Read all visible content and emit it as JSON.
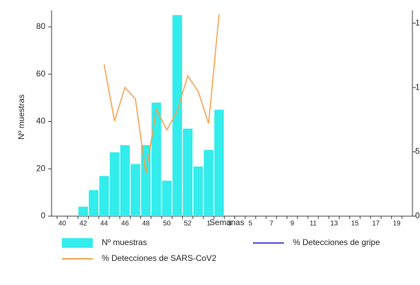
{
  "chart_data": {
    "type": "bar",
    "x_label": "Semanas",
    "y_label": "Nº muestras",
    "categories": [
      "40",
      null,
      "42",
      null,
      "44",
      null,
      "46",
      null,
      "48",
      null,
      "50",
      null,
      "52",
      null,
      "1",
      null,
      "3",
      null,
      "5",
      null,
      "7",
      null,
      "9",
      null,
      "11",
      null,
      "13",
      null,
      "15",
      null,
      "17",
      null,
      "19",
      null
    ],
    "series": [
      {
        "name": "Nº muestras",
        "type": "bar",
        "color": "#33ecec",
        "values": [
          null,
          null,
          4,
          11,
          17,
          27,
          30,
          22,
          30,
          48,
          15,
          85,
          37,
          21,
          28,
          45,
          null,
          null,
          null,
          null,
          null,
          null,
          null,
          null,
          null,
          null,
          null,
          null,
          null,
          null,
          null,
          null,
          null,
          null
        ]
      },
      {
        "name": "% Detecciones de gripe",
        "type": "line",
        "axis": "y2",
        "color": "#4444dd",
        "values": [
          null,
          null,
          null,
          null,
          null,
          null,
          null,
          null,
          null,
          null,
          null,
          null,
          null,
          null,
          null,
          null,
          null,
          null,
          null,
          null,
          null,
          null,
          null,
          null,
          null,
          null,
          null,
          null,
          null,
          null,
          null,
          null,
          null,
          null
        ]
      },
      {
        "name": "% Detecciones de SARS-CoV2",
        "type": "line",
        "axis": "y2",
        "color": "#f5a04a",
        "values": [
          null,
          null,
          null,
          null,
          11.8,
          7.4,
          10,
          9.1,
          3.3,
          8.3,
          6.7,
          8.2,
          10.9,
          9.7,
          7.2,
          15.7,
          null,
          null,
          null,
          null,
          null,
          null,
          null,
          null,
          null,
          null,
          null,
          null,
          null,
          null,
          null,
          null,
          null,
          null
        ]
      }
    ],
    "ylim": [
      0,
      87
    ],
    "yticks": [
      0,
      20,
      40,
      60,
      80
    ],
    "y2lim": [
      0,
      16
    ],
    "y2ticks": [
      0,
      5,
      {
        "value": 10,
        "label": "1"
      },
      {
        "value": 15,
        "label": "1"
      }
    ]
  }
}
